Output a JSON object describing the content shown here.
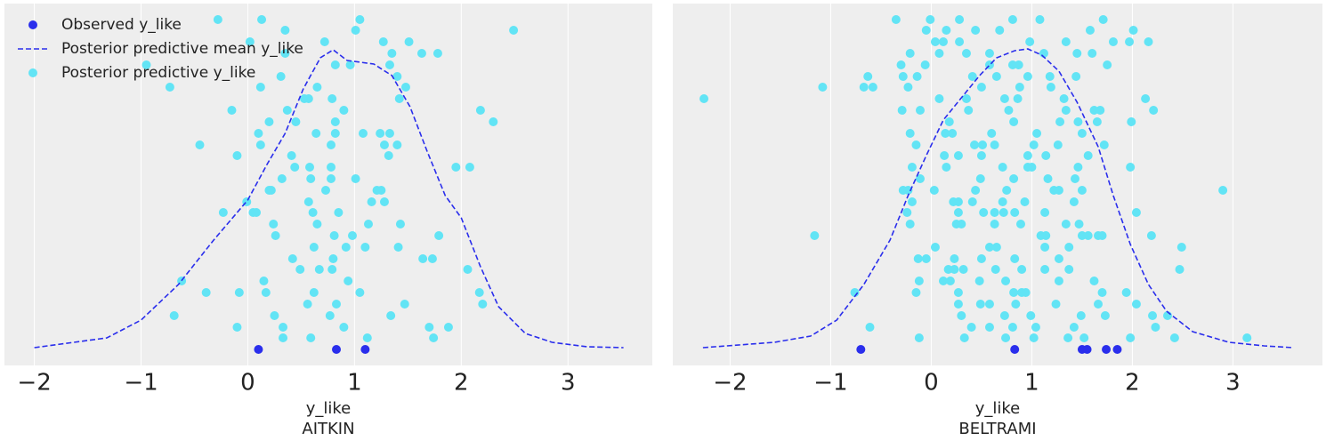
{
  "chart_data": [
    {
      "type": "scatter",
      "xlabel": "y_like",
      "title": "AITKIN",
      "legend": "upper left",
      "grid": true,
      "xlim": [
        -2.28,
        3.79
      ],
      "ylim": [
        -0.18,
        3.89
      ],
      "xticks": [
        {
          "value": -2,
          "label": "−2"
        },
        {
          "value": -1,
          "label": "−1"
        },
        0,
        1,
        2,
        3
      ],
      "series": [
        {
          "name": "Observed y_like",
          "color": "#2a2eec",
          "kind": "points",
          "x": [
            0.1,
            0.83,
            1.1
          ],
          "y": [
            0,
            0,
            0
          ]
        },
        {
          "name": "Posterior predictive mean y_like",
          "color": "#2a2eec",
          "kind": "line",
          "linestyle": "dashed",
          "x": [
            -2,
            -1.32,
            -1,
            -0.65,
            -0.32,
            0,
            0.18,
            0.35,
            0.52,
            0.68,
            0.8,
            0.93,
            1.18,
            1.35,
            1.52,
            1.68,
            1.85,
            2.0,
            2.18,
            2.35,
            2.6,
            2.85,
            3.18,
            3.52
          ],
          "y": [
            0.02,
            0.13,
            0.33,
            0.73,
            1.23,
            1.68,
            2.08,
            2.43,
            2.93,
            3.28,
            3.37,
            3.25,
            3.21,
            3.08,
            2.73,
            2.23,
            1.73,
            1.48,
            0.93,
            0.48,
            0.18,
            0.08,
            0.03,
            0.02
          ]
        },
        {
          "name": "Posterior predictive y_like",
          "color": "#62e4f5",
          "kind": "points",
          "x": [
            -0.28,
            0.13,
            1.05,
            0.35,
            1.01,
            2.49,
            0.02,
            0.72,
            1.27,
            1.51,
            -0.95,
            0.35,
            1.35,
            1.63,
            1.78,
            0.82,
            0.96,
            1.33,
            -0.73,
            0.12,
            0.31,
            1.4,
            0.65,
            1.48,
            0.53,
            0.57,
            0.79,
            1.42,
            -0.15,
            0.37,
            0.9,
            2.18,
            0.2,
            0.45,
            0.82,
            2.3,
            -0.45,
            0.1,
            0.64,
            0.82,
            1.08,
            1.24,
            1.33,
            0.12,
            1.28,
            1.4,
            0.78,
            -0.1,
            0.41,
            1.32,
            0.44,
            0.58,
            0.78,
            1.95,
            2.08,
            0.32,
            0.59,
            0.78,
            1.01,
            0.2,
            0.22,
            0.73,
            1.21,
            1.25,
            -0.01,
            0.57,
            1.16,
            1.28,
            -0.23,
            0.05,
            0.08,
            0.61,
            0.85,
            0.24,
            0.65,
            1.13,
            1.43,
            0.26,
            0.81,
            0.98,
            1.79,
            0.62,
            0.92,
            1.1,
            1.41,
            0.42,
            0.8,
            1.64,
            1.73,
            0.49,
            0.67,
            0.79,
            2.06,
            -0.62,
            0.15,
            0.94,
            -0.39,
            -0.08,
            0.17,
            0.62,
            1.05,
            2.17,
            0.56,
            0.83,
            1.47,
            2.2,
            -0.69,
            0.25,
            0.77,
            1.34,
            -0.1,
            0.33,
            0.9,
            1.7,
            1.88,
            0.33,
            0.59,
            1.12,
            1.74
          ],
          "y": [
            3.71,
            3.71,
            3.71,
            3.59,
            3.59,
            3.59,
            3.46,
            3.46,
            3.46,
            3.46,
            3.2,
            3.33,
            3.33,
            3.33,
            3.33,
            3.2,
            3.2,
            3.2,
            2.95,
            2.95,
            3.07,
            3.07,
            2.95,
            2.95,
            2.82,
            2.82,
            2.82,
            2.82,
            2.69,
            2.69,
            2.69,
            2.69,
            2.56,
            2.56,
            2.56,
            2.56,
            2.3,
            2.43,
            2.43,
            2.43,
            2.43,
            2.43,
            2.43,
            2.3,
            2.3,
            2.3,
            2.3,
            2.18,
            2.18,
            2.18,
            2.05,
            2.05,
            2.05,
            2.05,
            2.05,
            1.92,
            1.92,
            1.92,
            1.92,
            1.79,
            1.79,
            1.79,
            1.79,
            1.79,
            1.66,
            1.66,
            1.66,
            1.66,
            1.54,
            1.54,
            1.54,
            1.54,
            1.54,
            1.41,
            1.41,
            1.41,
            1.41,
            1.28,
            1.28,
            1.28,
            1.28,
            1.15,
            1.15,
            1.15,
            1.15,
            1.02,
            1.02,
            1.02,
            1.02,
            0.9,
            0.9,
            0.9,
            0.9,
            0.77,
            0.77,
            0.77,
            0.64,
            0.64,
            0.64,
            0.64,
            0.64,
            0.64,
            0.51,
            0.51,
            0.51,
            0.51,
            0.38,
            0.38,
            0.38,
            0.38,
            0.25,
            0.25,
            0.25,
            0.25,
            0.25,
            0.13,
            0.13,
            0.13,
            0.13
          ]
        }
      ]
    },
    {
      "type": "scatter",
      "xlabel": "y_like",
      "title": "BELTRAMI",
      "grid": true,
      "xlim": [
        -2.57,
        3.89
      ],
      "ylim": [
        -0.18,
        3.89
      ],
      "xticks": [
        {
          "value": -2,
          "label": "−2"
        },
        {
          "value": -1,
          "label": "−1"
        },
        0,
        1,
        2,
        3
      ],
      "series": [
        {
          "color": "#2a2eec",
          "kind": "points",
          "x": [
            -0.7,
            0.83,
            1.5,
            1.55,
            1.74,
            1.85
          ],
          "y": [
            0,
            0,
            0,
            0,
            0,
            0
          ]
        },
        {
          "color": "#2a2eec",
          "kind": "line",
          "linestyle": "dashed",
          "x": [
            -2.27,
            -1.56,
            -1.2,
            -0.94,
            -0.67,
            -0.41,
            -0.23,
            -0.05,
            0.12,
            0.3,
            0.48,
            0.65,
            0.83,
            0.96,
            1.1,
            1.27,
            1.45,
            1.66,
            1.81,
            1.98,
            2.16,
            2.34,
            2.6,
            2.96,
            3.31,
            3.6
          ],
          "y": [
            0.02,
            0.08,
            0.15,
            0.33,
            0.73,
            1.23,
            1.73,
            2.18,
            2.58,
            2.83,
            3.08,
            3.28,
            3.36,
            3.38,
            3.31,
            3.13,
            2.78,
            2.28,
            1.73,
            1.18,
            0.73,
            0.43,
            0.2,
            0.08,
            0.04,
            0.02
          ]
        },
        {
          "color": "#62e4f5",
          "kind": "points",
          "x": [
            -0.35,
            -0.01,
            0.28,
            0.81,
            1.08,
            1.71,
            -0.05,
            0.15,
            0.44,
            0.68,
            1.58,
            2.01,
            0.04,
            0.12,
            0.28,
            0.98,
            1.34,
            1.81,
            1.97,
            2.16,
            -0.21,
            0.08,
            0.35,
            0.58,
            1.12,
            1.45,
            1.6,
            -0.3,
            -0.06,
            0.58,
            0.81,
            0.87,
            1.75,
            -1.08,
            -0.63,
            -0.67,
            -0.58,
            -0.28,
            -0.14,
            0.41,
            0.65,
            0.96,
            1.18,
            1.44,
            -0.23,
            0.5,
            0.88,
            1.19,
            -2.26,
            0.08,
            0.35,
            0.73,
            0.86,
            1.32,
            2.13,
            -0.29,
            -0.11,
            0.37,
            0.77,
            1.34,
            1.62,
            1.68,
            2.21,
            0.18,
            0.82,
            1.28,
            1.46,
            1.65,
            1.99,
            -0.21,
            0.14,
            0.21,
            0.6,
            1.05,
            1.5,
            -0.15,
            0.43,
            0.51,
            0.63,
            1.02,
            1.26,
            1.72,
            0.13,
            0.27,
            0.5,
            0.96,
            1.14,
            1.56,
            -0.19,
            0.15,
            0.71,
            0.96,
            1.0,
            1.46,
            1.98,
            -0.11,
            0.49,
            0.82,
            1.16,
            1.43,
            -0.28,
            -0.23,
            0.03,
            0.44,
            0.75,
            1.22,
            1.27,
            1.5,
            2.9,
            -0.19,
            0.22,
            0.27,
            0.41,
            0.71,
            0.93,
            1.42,
            -0.24,
            0.27,
            0.52,
            0.63,
            0.72,
            0.83,
            1.13,
            2.04,
            -0.21,
            0.25,
            0.3,
            0.63,
            0.89,
            1.34,
            1.47,
            -1.16,
            1.09,
            1.14,
            1.5,
            1.56,
            1.66,
            1.7,
            2.19,
            0.04,
            0.58,
            0.65,
            1.13,
            1.37,
            2.49,
            -0.13,
            -0.05,
            0.23,
            0.5,
            0.83,
            1.27,
            0.17,
            0.23,
            0.32,
            0.64,
            0.9,
            1.13,
            1.37,
            2.47,
            -0.12,
            0.12,
            0.19,
            0.48,
            0.74,
            1.27,
            1.62,
            -0.76,
            -0.15,
            0.27,
            0.82,
            0.9,
            0.94,
            1.7,
            1.94,
            0.27,
            0.49,
            0.58,
            0.84,
            1.24,
            1.66,
            2.04,
            0.3,
            0.73,
            0.99,
            1.49,
            1.73,
            2.2,
            2.35,
            -0.61,
            0.4,
            0.58,
            0.81,
            1.04,
            1.42,
            2.23,
            -0.12,
            0.33,
            0.74,
            1.02,
            1.36,
            1.52,
            1.98,
            2.42,
            3.14
          ],
          "y": [
            3.71,
            3.71,
            3.71,
            3.71,
            3.71,
            3.71,
            3.59,
            3.59,
            3.59,
            3.59,
            3.59,
            3.59,
            3.46,
            3.46,
            3.46,
            3.46,
            3.46,
            3.46,
            3.46,
            3.46,
            3.33,
            3.33,
            3.33,
            3.33,
            3.33,
            3.33,
            3.33,
            3.2,
            3.2,
            3.2,
            3.2,
            3.2,
            3.2,
            2.95,
            3.07,
            2.95,
            2.95,
            3.07,
            3.07,
            3.07,
            3.07,
            3.07,
            3.07,
            3.07,
            2.95,
            2.95,
            2.95,
            2.95,
            2.82,
            2.82,
            2.82,
            2.82,
            2.82,
            2.82,
            2.82,
            2.69,
            2.69,
            2.69,
            2.69,
            2.69,
            2.69,
            2.69,
            2.69,
            2.56,
            2.56,
            2.56,
            2.56,
            2.56,
            2.56,
            2.43,
            2.43,
            2.43,
            2.43,
            2.43,
            2.43,
            2.3,
            2.3,
            2.3,
            2.3,
            2.3,
            2.3,
            2.3,
            2.18,
            2.18,
            2.18,
            2.18,
            2.18,
            2.18,
            2.05,
            2.05,
            2.05,
            2.05,
            2.05,
            2.05,
            2.05,
            1.92,
            1.92,
            1.92,
            1.92,
            1.92,
            1.79,
            1.79,
            1.79,
            1.79,
            1.79,
            1.79,
            1.79,
            1.79,
            1.79,
            1.66,
            1.66,
            1.66,
            1.66,
            1.66,
            1.66,
            1.66,
            1.54,
            1.54,
            1.54,
            1.54,
            1.54,
            1.54,
            1.54,
            1.54,
            1.41,
            1.41,
            1.41,
            1.41,
            1.41,
            1.41,
            1.41,
            1.28,
            1.28,
            1.28,
            1.28,
            1.28,
            1.28,
            1.28,
            1.28,
            1.15,
            1.15,
            1.15,
            1.15,
            1.15,
            1.15,
            1.02,
            1.02,
            1.02,
            1.02,
            1.02,
            1.02,
            0.9,
            0.9,
            0.9,
            0.9,
            0.9,
            0.9,
            0.9,
            0.9,
            0.77,
            0.77,
            0.77,
            0.77,
            0.77,
            0.77,
            0.77,
            0.64,
            0.64,
            0.64,
            0.64,
            0.64,
            0.64,
            0.64,
            0.64,
            0.51,
            0.51,
            0.51,
            0.51,
            0.51,
            0.51,
            0.51,
            0.38,
            0.38,
            0.38,
            0.38,
            0.38,
            0.38,
            0.38,
            0.25,
            0.25,
            0.25,
            0.25,
            0.25,
            0.25,
            0.25,
            0.13,
            0.13,
            0.13,
            0.13,
            0.13,
            0.13,
            0.13,
            0.13,
            0.13
          ]
        }
      ]
    }
  ]
}
